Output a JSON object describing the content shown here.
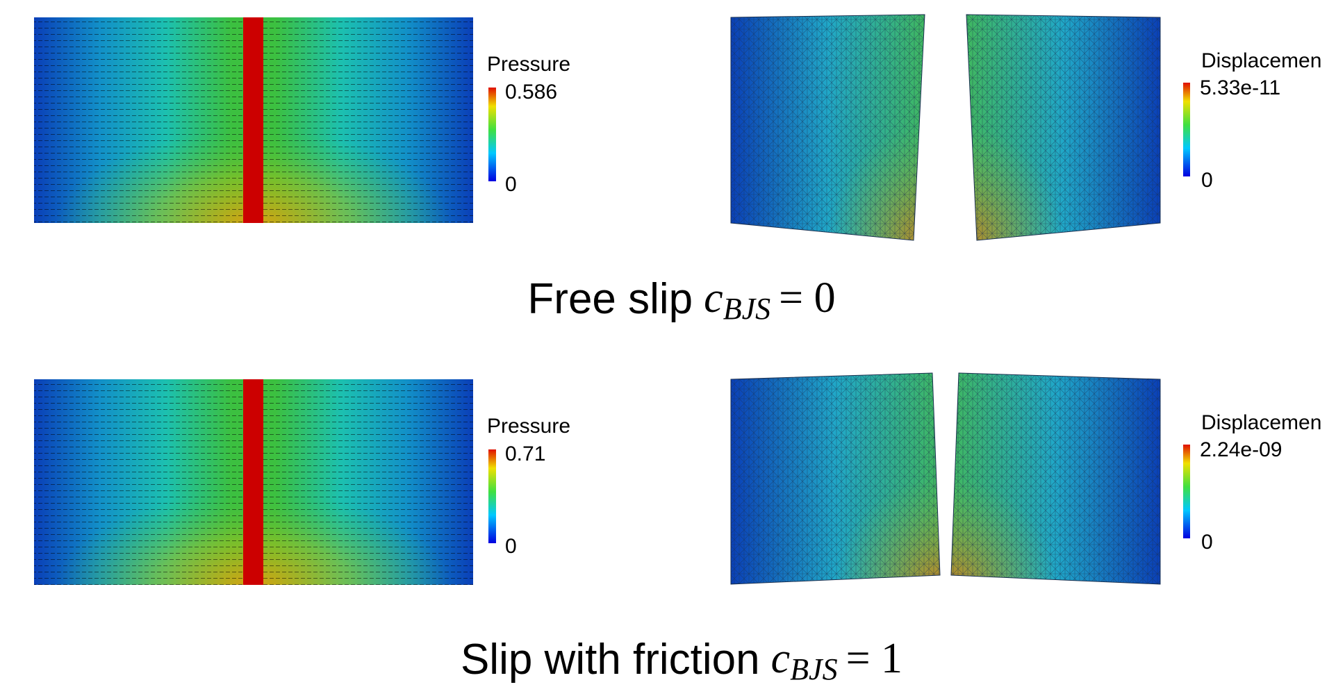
{
  "rows": [
    {
      "pressure": {
        "title": "Pressure",
        "max": "0.586",
        "min": "0"
      },
      "displacement": {
        "title": "Displacemen",
        "max": "5.33e-11",
        "min": "0"
      },
      "caption": {
        "label": "Free slip",
        "var": "c",
        "sub": "BJS",
        "rhs": "= 0"
      }
    },
    {
      "pressure": {
        "title": "Pressure",
        "max": "0.71",
        "min": "0"
      },
      "displacement": {
        "title": "Displacemen",
        "max": "2.24e-09",
        "min": "0"
      },
      "caption": {
        "label": "Slip with friction",
        "var": "c",
        "sub": "BJS",
        "rhs": "= 1"
      }
    }
  ]
}
